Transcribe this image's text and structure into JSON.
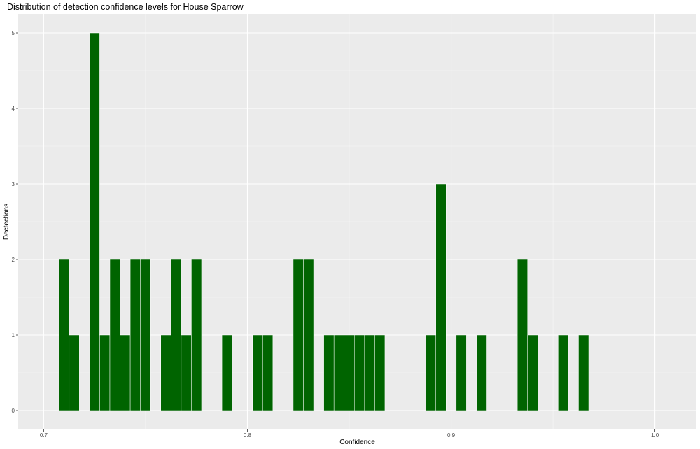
{
  "chart_data": {
    "type": "bar",
    "title": "Distribution of detection confidence levels for House Sparrow",
    "xlabel": "Confidence",
    "ylabel": "Dectections",
    "xlim": [
      0.6875,
      1.0204
    ],
    "ylim": [
      -0.25,
      5.25
    ],
    "x_ticks": [
      0.7,
      0.8,
      0.9,
      1.0
    ],
    "x_tick_labels": [
      "0.7",
      "0.8",
      "0.9",
      "1.0"
    ],
    "y_ticks": [
      0,
      1,
      2,
      3,
      4,
      5
    ],
    "y_tick_labels": [
      "0",
      "1",
      "2",
      "3",
      "4",
      "5"
    ],
    "bin_width": 0.005,
    "bar_color": "#006400",
    "panel_color": "#ebebeb",
    "grid": true,
    "bins": [
      {
        "x": 0.71,
        "count": 2
      },
      {
        "x": 0.715,
        "count": 1
      },
      {
        "x": 0.725,
        "count": 5
      },
      {
        "x": 0.73,
        "count": 1
      },
      {
        "x": 0.735,
        "count": 2
      },
      {
        "x": 0.74,
        "count": 1
      },
      {
        "x": 0.745,
        "count": 2
      },
      {
        "x": 0.75,
        "count": 2
      },
      {
        "x": 0.76,
        "count": 1
      },
      {
        "x": 0.765,
        "count": 2
      },
      {
        "x": 0.77,
        "count": 1
      },
      {
        "x": 0.775,
        "count": 2
      },
      {
        "x": 0.79,
        "count": 1
      },
      {
        "x": 0.805,
        "count": 1
      },
      {
        "x": 0.81,
        "count": 1
      },
      {
        "x": 0.825,
        "count": 2
      },
      {
        "x": 0.83,
        "count": 2
      },
      {
        "x": 0.84,
        "count": 1
      },
      {
        "x": 0.845,
        "count": 1
      },
      {
        "x": 0.85,
        "count": 1
      },
      {
        "x": 0.855,
        "count": 1
      },
      {
        "x": 0.86,
        "count": 1
      },
      {
        "x": 0.865,
        "count": 1
      },
      {
        "x": 0.89,
        "count": 1
      },
      {
        "x": 0.895,
        "count": 3
      },
      {
        "x": 0.905,
        "count": 1
      },
      {
        "x": 0.915,
        "count": 1
      },
      {
        "x": 0.935,
        "count": 2
      },
      {
        "x": 0.94,
        "count": 1
      },
      {
        "x": 0.955,
        "count": 1
      },
      {
        "x": 0.965,
        "count": 1
      }
    ]
  }
}
